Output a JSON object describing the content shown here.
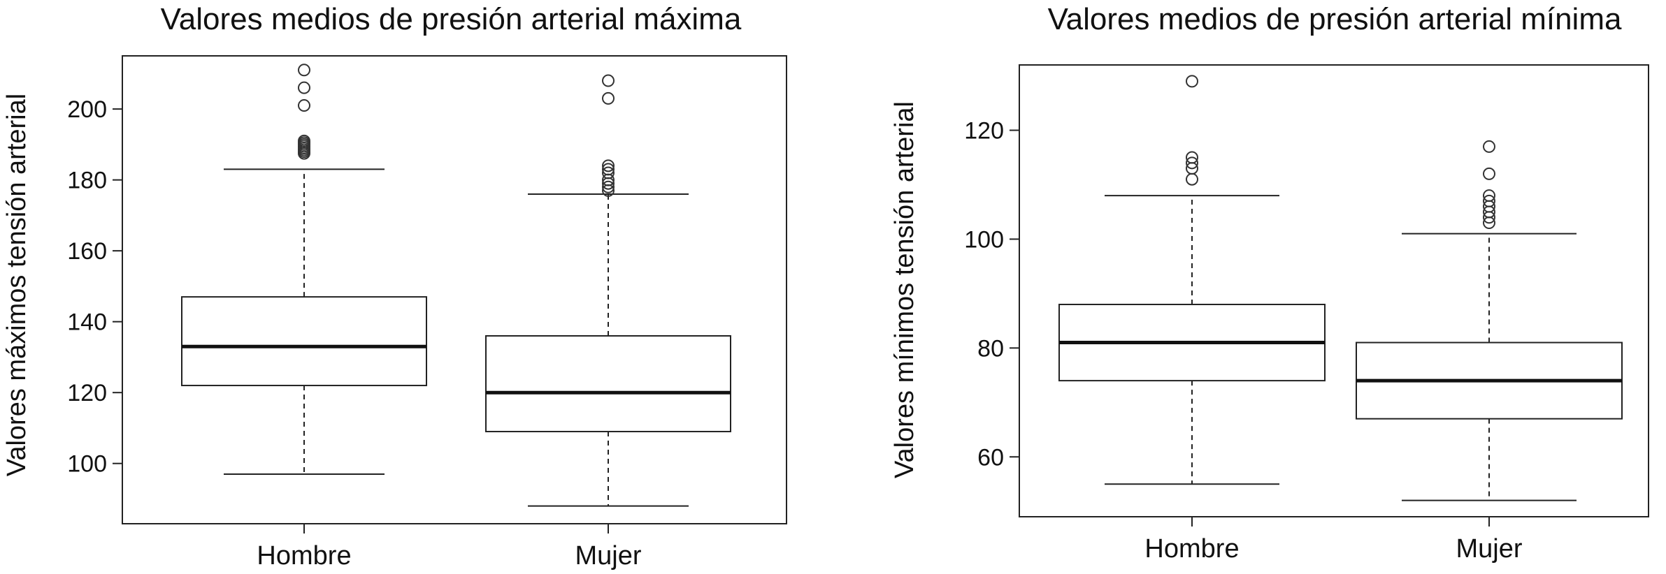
{
  "chart_data": [
    {
      "type": "box",
      "title": "Valores medios de presión arterial máxima",
      "xlabel": "",
      "ylabel": "Valores máximos tensión arterial",
      "ylim": [
        83,
        215
      ],
      "yticks": [
        100,
        120,
        140,
        160,
        180,
        200
      ],
      "grid": false,
      "categories": [
        "Hombre",
        "Mujer"
      ],
      "boxes": [
        {
          "category": "Hombre",
          "whisker_low": 97,
          "q1": 122,
          "median": 133,
          "q3": 147,
          "whisker_high": 183,
          "outliers": [
            187.5,
            188,
            188.5,
            189,
            189.5,
            190,
            190.5,
            191,
            201,
            206,
            211
          ]
        },
        {
          "category": "Mujer",
          "whisker_low": 88,
          "q1": 109,
          "median": 120,
          "q3": 136,
          "whisker_high": 176,
          "outliers": [
            177,
            178,
            179,
            180,
            182,
            183,
            184,
            203,
            208
          ]
        }
      ]
    },
    {
      "type": "box",
      "title": "Valores medios de presión arterial mínima",
      "xlabel": "",
      "ylabel": "Valores mínimos tensión arterial",
      "ylim": [
        49,
        132
      ],
      "yticks": [
        60,
        80,
        100,
        120
      ],
      "grid": false,
      "categories": [
        "Hombre",
        "Mujer"
      ],
      "boxes": [
        {
          "category": "Hombre",
          "whisker_low": 55,
          "q1": 74,
          "median": 81,
          "q3": 88,
          "whisker_high": 108,
          "outliers": [
            111,
            113,
            114,
            115,
            129
          ]
        },
        {
          "category": "Mujer",
          "whisker_low": 52,
          "q1": 67,
          "median": 74,
          "q3": 81,
          "whisker_high": 101,
          "outliers": [
            103,
            104,
            105,
            106,
            107,
            108,
            112,
            117
          ]
        }
      ]
    }
  ]
}
